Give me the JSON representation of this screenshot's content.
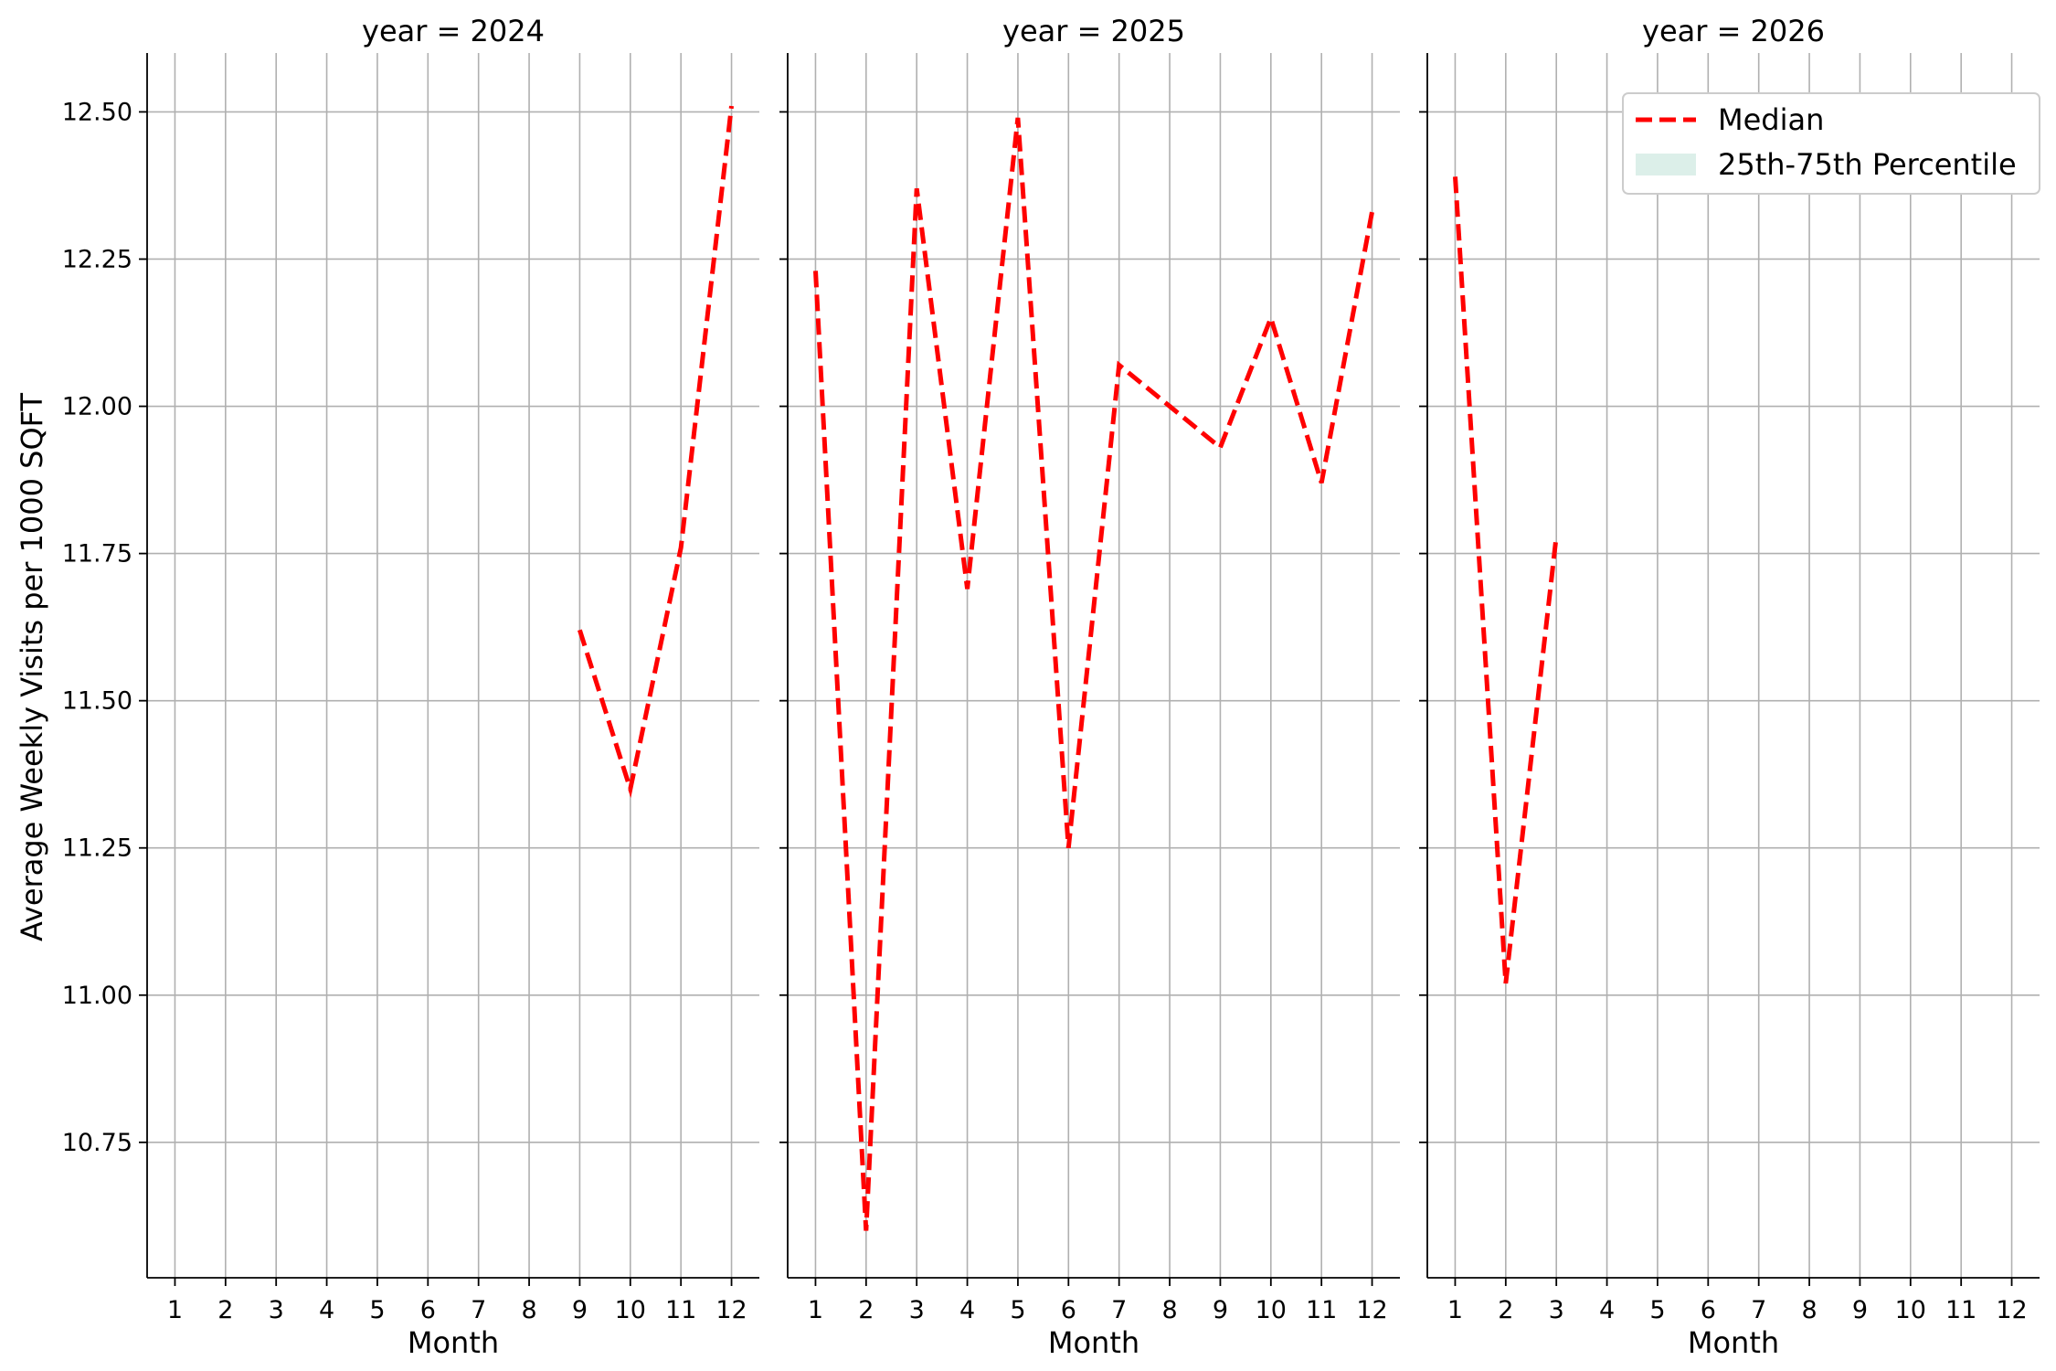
{
  "chart_data": {
    "type": "line",
    "layout": "facet-grid",
    "ylabel": "Average Weekly Visits per 1000 SQFT",
    "xlabel": "Month",
    "ylim": [
      10.52,
      12.6
    ],
    "yticks": [
      10.75,
      11.0,
      11.25,
      11.5,
      11.75,
      12.0,
      12.25,
      12.5
    ],
    "ytick_labels": [
      "10.75",
      "11.00",
      "11.25",
      "11.50",
      "11.75",
      "12.00",
      "12.25",
      "12.50"
    ],
    "xlim": [
      0.45,
      12.55
    ],
    "xticks": [
      1,
      2,
      3,
      4,
      5,
      6,
      7,
      8,
      9,
      10,
      11,
      12
    ],
    "xtick_labels": [
      "1",
      "2",
      "3",
      "4",
      "5",
      "6",
      "7",
      "8",
      "9",
      "10",
      "11",
      "12"
    ],
    "grid": true,
    "legend_placement": "top-right of last panel",
    "legend": [
      {
        "label": "Median",
        "style": "dashed-line",
        "color": "#ff0000"
      },
      {
        "label": "25th-75th Percentile",
        "style": "patch",
        "color": "#dcefe9"
      }
    ],
    "facets": [
      {
        "title": "year = 2024",
        "series": [
          {
            "name": "Median",
            "x": [
              9,
              10,
              11,
              12
            ],
            "y": [
              11.62,
              11.35,
              11.76,
              12.51
            ]
          }
        ]
      },
      {
        "title": "year = 2025",
        "series": [
          {
            "name": "Median",
            "x": [
              1,
              2,
              3,
              4,
              5,
              6,
              7,
              8,
              9,
              10,
              11,
              12
            ],
            "y": [
              12.23,
              10.6,
              12.37,
              11.69,
              12.49,
              11.25,
              12.07,
              12.0,
              11.93,
              12.15,
              11.87,
              12.33
            ]
          }
        ]
      },
      {
        "title": "year = 2026",
        "series": [
          {
            "name": "Median",
            "x": [
              1,
              2,
              3
            ],
            "y": [
              12.39,
              11.02,
              11.78
            ]
          }
        ]
      }
    ],
    "colors": {
      "median": "#ff0000",
      "percentile_band": "#dcefe9",
      "grid": "#b0b0b0",
      "axis": "#000000"
    }
  }
}
